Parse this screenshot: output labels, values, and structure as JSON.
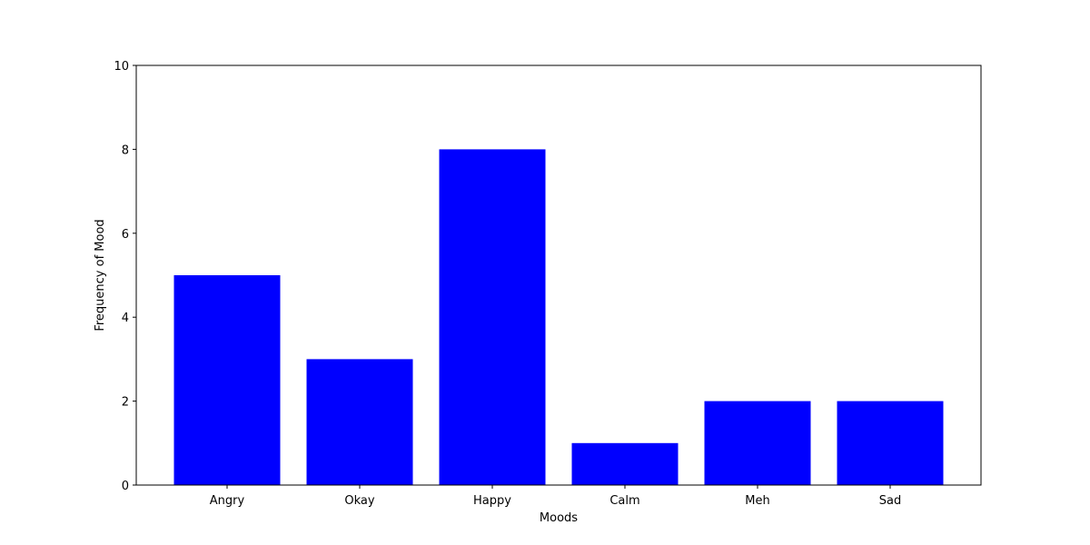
{
  "chart_data": {
    "type": "bar",
    "categories": [
      "Angry",
      "Okay",
      "Happy",
      "Calm",
      "Meh",
      "Sad"
    ],
    "values": [
      5,
      3,
      8,
      1,
      2,
      2
    ],
    "xlabel": "Moods",
    "ylabel": "Frequency of Mood",
    "ylim": [
      0,
      10
    ],
    "yticks": [
      "0",
      "2",
      "4",
      "6",
      "8",
      "10"
    ],
    "bar_color": "#0000ff",
    "grid": false,
    "legend": "none"
  }
}
